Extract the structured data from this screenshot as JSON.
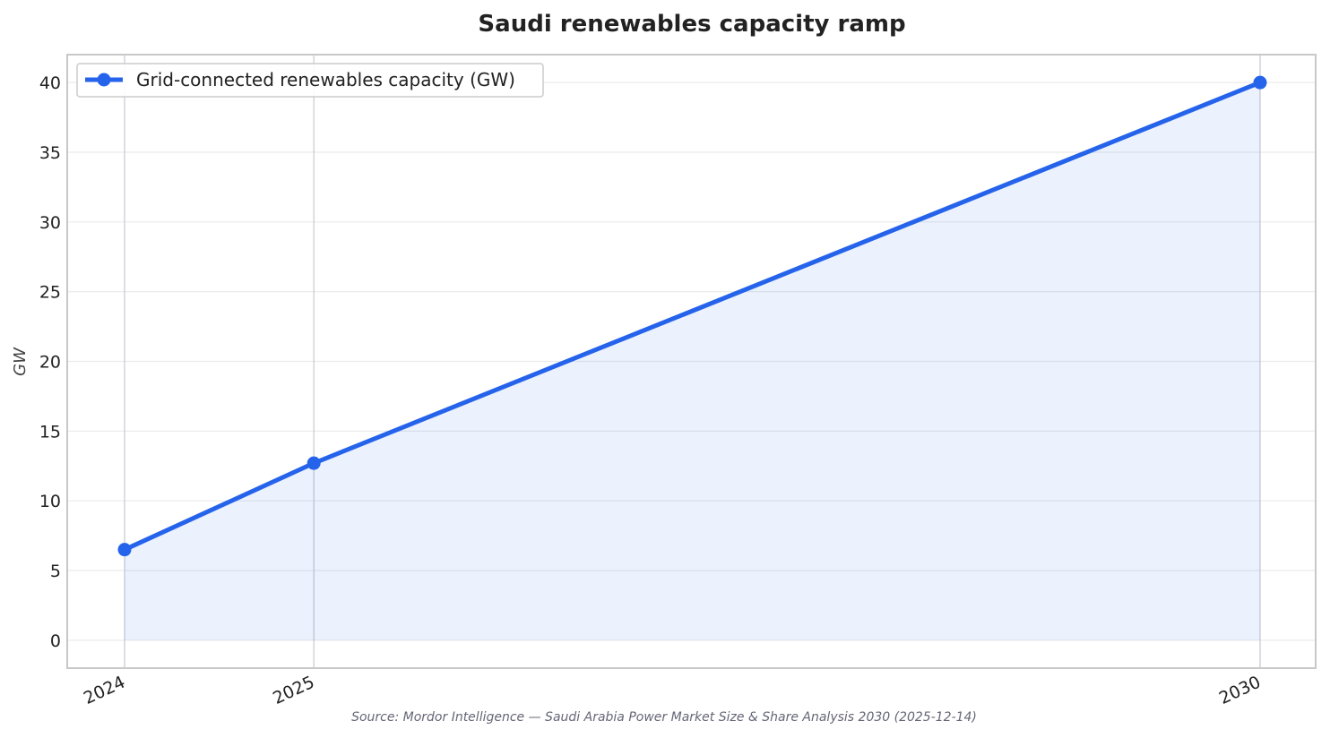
{
  "chart_data": {
    "type": "area",
    "title": "Saudi renewables capacity ramp",
    "xlabel": "",
    "ylabel": "GW",
    "x": [
      "2024",
      "2025",
      "2030"
    ],
    "series": [
      {
        "name": "Grid-connected renewables capacity (GW)",
        "values": [
          6.5,
          12.7,
          40
        ]
      }
    ],
    "ylim": [
      -2,
      42
    ],
    "yticks": [
      0,
      5,
      10,
      15,
      20,
      25,
      30,
      35,
      40
    ],
    "grid": true,
    "legend": "top-left",
    "source": "Source: Mordor Intelligence — Saudi Arabia Power Market Size & Share Analysis 2030 (2025-12-14)"
  },
  "colors": {
    "line": "#2563eb",
    "fill": "#2563eb",
    "grid": "#ebebeb",
    "vgrid": "#c6c9d0",
    "frame": "#c8c8c8"
  }
}
